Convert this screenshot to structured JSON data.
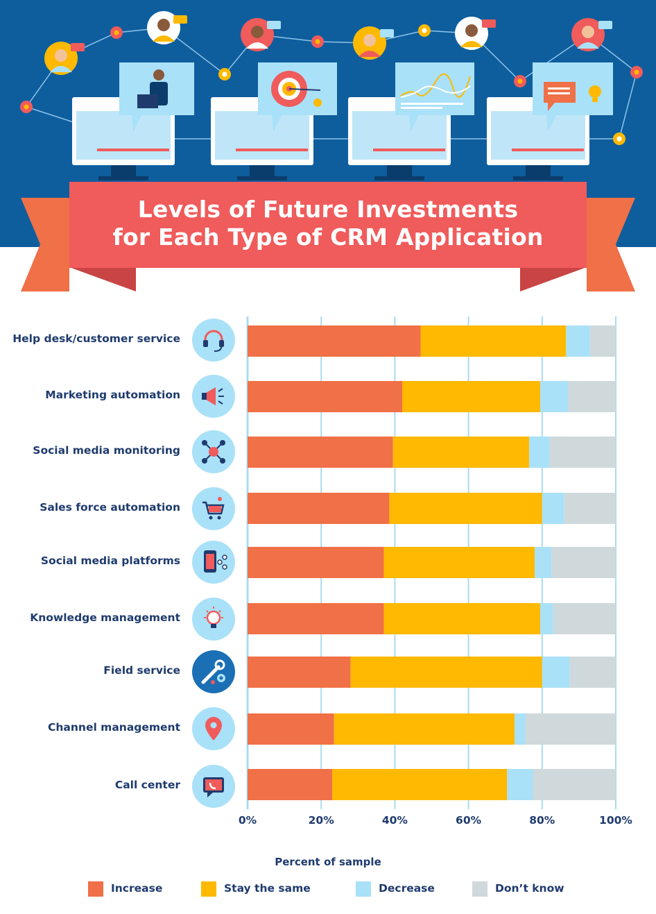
{
  "header": {
    "title_line1": "Levels of Future Investments",
    "title_line2": "for Each Type of CRM Application"
  },
  "colors": {
    "increase": "#f07047",
    "stay_the_same": "#ffb900",
    "decrease": "#a9e1f8",
    "dont_know": "#cfd9db",
    "hero_background": "#0e5e9e",
    "banner": "#f05b5b",
    "text": "#1f3b6e"
  },
  "icons": [
    "headset-icon",
    "megaphone-icon",
    "network-icon",
    "shopping-cart-icon",
    "mobile-share-icon",
    "lightbulb-icon",
    "wrench-gear-icon",
    "map-pin-icon",
    "phone-chat-icon"
  ],
  "chart_data": {
    "type": "bar",
    "orientation": "horizontal",
    "stacked": true,
    "categories": [
      "Help desk/customer service",
      "Marketing automation",
      "Social media monitoring",
      "Sales force automation",
      "Social media platforms",
      "Knowledge management",
      "Field service",
      "Channel management",
      "Call center"
    ],
    "series": [
      {
        "name": "Increase",
        "values": [
          47,
          42,
          39.5,
          38.5,
          37,
          37,
          28,
          23.5,
          23
        ]
      },
      {
        "name": "Stay the same",
        "values": [
          39.5,
          37.5,
          37,
          41.5,
          41,
          42.5,
          52,
          49,
          47.5
        ]
      },
      {
        "name": "Decrease",
        "values": [
          6.5,
          7.5,
          5.5,
          6,
          4.5,
          3.5,
          7.5,
          3,
          7
        ]
      },
      {
        "name": "Don’t know",
        "values": [
          7,
          13,
          18,
          14,
          17.5,
          17,
          12.5,
          24.5,
          22.5
        ]
      }
    ],
    "xlabel": "Percent of sample",
    "xlim": [
      0,
      100
    ],
    "xticks": [
      "0%",
      "20%",
      "40%",
      "60%",
      "80%",
      "100%"
    ],
    "grid": true,
    "legend_position": "bottom"
  }
}
